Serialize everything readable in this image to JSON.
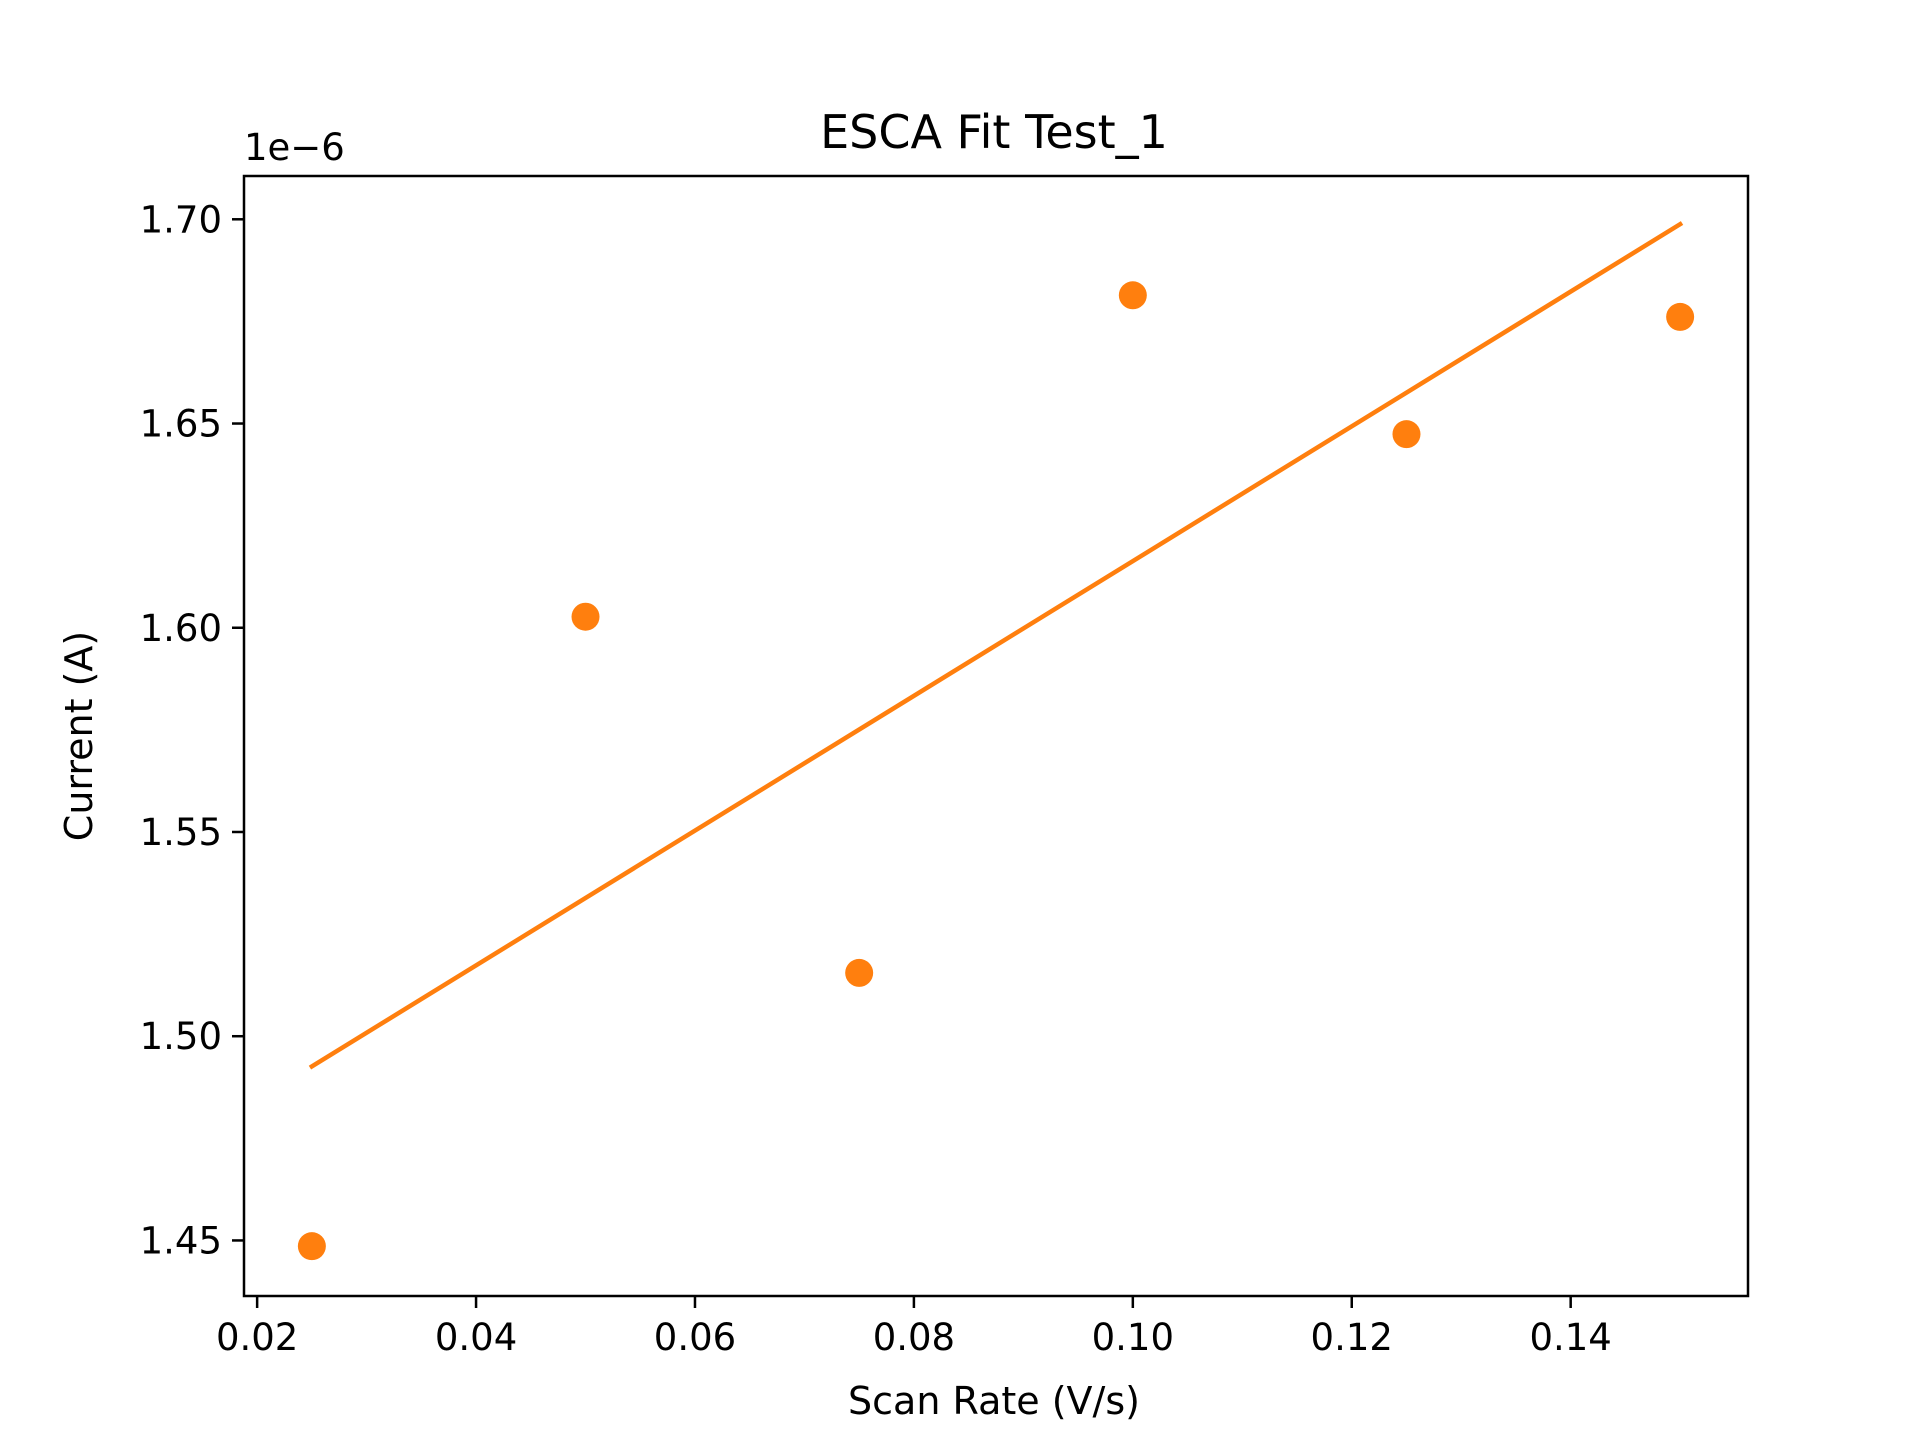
{
  "chart_data": {
    "type": "scatter",
    "title": "ESCA Fit Test_1",
    "xlabel": "Scan Rate (V/s)",
    "ylabel": "Current (A)",
    "y_offset_label": "1e−6",
    "xlim": [
      0.0188,
      0.1562
    ],
    "ylim": [
      1.4364,
      1.7106
    ],
    "x_ticks": [
      0.02,
      0.04,
      0.06,
      0.08,
      0.1,
      0.12,
      0.14
    ],
    "x_tick_labels": [
      "0.02",
      "0.04",
      "0.06",
      "0.08",
      "0.10",
      "0.12",
      "0.14"
    ],
    "y_ticks": [
      1.45,
      1.5,
      1.55,
      1.6,
      1.65,
      1.7
    ],
    "y_tick_labels": [
      "1.45",
      "1.50",
      "1.55",
      "1.60",
      "1.65",
      "1.70"
    ],
    "grid": false,
    "color": "#ff7f0e",
    "points": {
      "x": [
        0.025,
        0.05,
        0.075,
        0.1,
        0.125,
        0.15
      ],
      "y": [
        1.4486,
        1.6027,
        1.5155,
        1.6814,
        1.6474,
        1.6761
      ]
    },
    "fit_line": {
      "x": [
        0.025,
        0.15
      ],
      "y": [
        1.4926,
        1.6988
      ]
    }
  }
}
